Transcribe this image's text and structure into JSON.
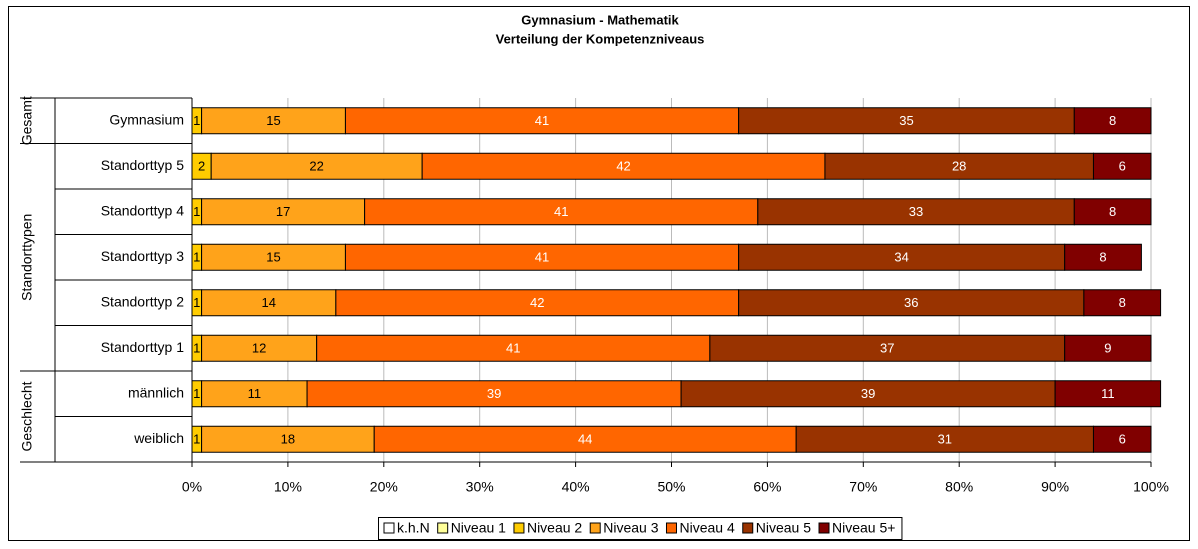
{
  "chart_data": {
    "type": "stacked-bar-horizontal",
    "title": [
      "Gymnasium - Mathematik",
      "Verteilung der Kompetenzniveaus"
    ],
    "groups": [
      "Gesamt",
      "Standorttypen",
      "Geschlecht"
    ],
    "categories": [
      "Gymnasium",
      "Standorttyp 5",
      "Standorttyp 4",
      "Standorttyp 3",
      "Standorttyp 2",
      "Standorttyp 1",
      "männlich",
      "weiblich"
    ],
    "series": [
      {
        "name": "k.h.N",
        "color": "#FFFFFF",
        "values": [
          0,
          0,
          0,
          0,
          0,
          0,
          0,
          0
        ]
      },
      {
        "name": "Niveau 1",
        "color": "#FFFF99",
        "values": [
          0,
          0,
          0,
          0,
          0,
          0,
          0,
          0
        ]
      },
      {
        "name": "Niveau 2",
        "color": "#FFCC00",
        "values": [
          1,
          2,
          1,
          1,
          1,
          1,
          1,
          1
        ]
      },
      {
        "name": "Niveau 3",
        "color": "#FFA31A",
        "values": [
          15,
          22,
          17,
          15,
          14,
          12,
          11,
          18
        ]
      },
      {
        "name": "Niveau 4",
        "color": "#FF6600",
        "values": [
          41,
          42,
          41,
          41,
          42,
          41,
          39,
          44
        ]
      },
      {
        "name": "Niveau 5",
        "color": "#993300",
        "values": [
          35,
          28,
          33,
          34,
          36,
          37,
          39,
          31
        ]
      },
      {
        "name": "Niveau 5+",
        "color": "#800000",
        "values": [
          8,
          6,
          8,
          8,
          8,
          9,
          11,
          6
        ]
      }
    ],
    "xlim": [
      0,
      100
    ],
    "xticks": [
      {
        "value": 0,
        "label": "0%"
      },
      {
        "value": 10,
        "label": "10%"
      },
      {
        "value": 20,
        "label": "20%"
      },
      {
        "value": 30,
        "label": "30%"
      },
      {
        "value": 40,
        "label": "40%"
      },
      {
        "value": 50,
        "label": "50%"
      },
      {
        "value": 60,
        "label": "60%"
      },
      {
        "value": 70,
        "label": "70%"
      },
      {
        "value": 80,
        "label": "80%"
      },
      {
        "value": 90,
        "label": "90%"
      },
      {
        "value": 100,
        "label": "100%"
      }
    ],
    "grid": true,
    "legend": "bottom"
  }
}
